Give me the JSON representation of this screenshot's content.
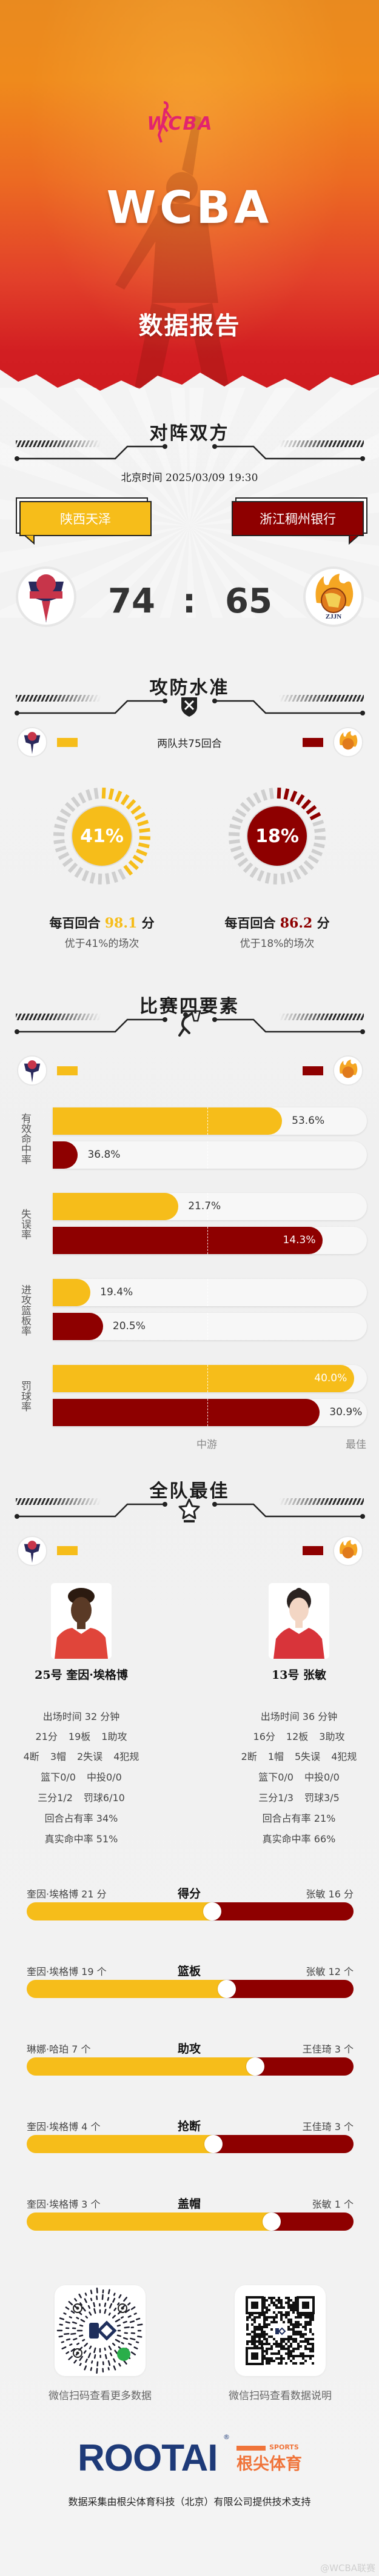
{
  "colors": {
    "home": "#f6bd1a",
    "away": "#8e0000",
    "brand_navy": "#1e3a78",
    "brand_orange": "#f0743a"
  },
  "header": {
    "league_logo": "WCBA",
    "title": "WCBA",
    "subtitle": "数据报告"
  },
  "matchup": {
    "title": "对阵双方",
    "datetime": "北京时间 2025/03/09 19:30",
    "home": {
      "name": "陕西天泽",
      "score": "74",
      "logo_icon": "shaanxi-tianze-logo"
    },
    "away": {
      "name": "浙江稠州银行",
      "score": "65",
      "logo_icon": "zhejiang-logo"
    },
    "separator": ":"
  },
  "efficiency": {
    "title": "攻防水准",
    "icon": "shield-swords-icon",
    "possessions": "两队共75回合",
    "teams": [
      {
        "percentile": 41,
        "pct_label": "41%",
        "prefix": "每百回合",
        "rating": "98.1",
        "unit": "分",
        "note": "优于41%的场次"
      },
      {
        "percentile": 18,
        "pct_label": "18%",
        "prefix": "每百回合",
        "rating": "86.2",
        "unit": "分",
        "note": "优于18%的场次"
      }
    ]
  },
  "four_factors": {
    "title": "比赛四要素",
    "icon": "basketball-dunk-icon",
    "axis": {
      "mid": "中游",
      "best": "最佳"
    },
    "factors": [
      {
        "label": "有效命中率",
        "home": {
          "value": "53.6%",
          "level": 0.73
        },
        "away": {
          "value": "36.8%",
          "level": 0.08
        }
      },
      {
        "label": "失误率",
        "home": {
          "value": "21.7%",
          "level": 0.4
        },
        "away": {
          "value": "14.3%",
          "level": 0.86
        }
      },
      {
        "label": "进攻篮板率",
        "home": {
          "value": "19.4%",
          "level": 0.12
        },
        "away": {
          "value": "20.5%",
          "level": 0.16
        }
      },
      {
        "label": "罚球率",
        "home": {
          "value": "40.0%",
          "level": 0.96
        },
        "away": {
          "value": "30.9%",
          "level": 0.85
        }
      }
    ]
  },
  "best": {
    "title": "全队最佳",
    "icon": "star-icon",
    "players": [
      {
        "name": "25号 奎因·埃格博",
        "lines": [
          [
            "出场时间 32 分钟"
          ],
          [
            "21分",
            "19板",
            "1助攻"
          ],
          [
            "4断",
            "3帽",
            "2失误",
            "4犯规"
          ],
          [
            "篮下0/0",
            "中投0/0"
          ],
          [
            "三分1/2",
            "罚球6/10"
          ],
          [
            "回合占有率 34%"
          ],
          [
            "真实命中率 51%"
          ]
        ]
      },
      {
        "name": "13号 张敏",
        "lines": [
          [
            "出场时间 36 分钟"
          ],
          [
            "16分",
            "12板",
            "3助攻"
          ],
          [
            "2断",
            "1帽",
            "5失误",
            "4犯规"
          ],
          [
            "篮下0/0",
            "中投0/0"
          ],
          [
            "三分1/3",
            "罚球3/5"
          ],
          [
            "回合占有率 21%"
          ],
          [
            "真实命中率 66%"
          ]
        ]
      }
    ],
    "comparisons": [
      {
        "category": "得分",
        "home_label": "奎因·埃格博 21 分",
        "away_label": "张敏 16 分",
        "home_value": 21,
        "away_value": 16
      },
      {
        "category": "篮板",
        "home_label": "奎因·埃格博 19 个",
        "away_label": "张敏 12 个",
        "home_value": 19,
        "away_value": 12
      },
      {
        "category": "助攻",
        "home_label": "琳娜·哈珀 7 个",
        "away_label": "王佳琦 3 个",
        "home_value": 7,
        "away_value": 3
      },
      {
        "category": "抢断",
        "home_label": "奎因·埃格博 4 个",
        "away_label": "王佳琦 3 个",
        "home_value": 4,
        "away_value": 3
      },
      {
        "category": "盖帽",
        "home_label": "奎因·埃格博 3 个",
        "away_label": "张敏 1 个",
        "home_value": 3,
        "away_value": 1
      }
    ]
  },
  "footer": {
    "qr": [
      {
        "caption": "微信扫码查看更多数据",
        "icon": "mini-program-code-icon"
      },
      {
        "caption": "微信扫码查看数据说明",
        "icon": "qr-code-icon"
      }
    ],
    "brand": {
      "en": "ROOTAI",
      "reg": "®",
      "sports": "SPORTS",
      "cn": "根尖体育"
    },
    "credit": "数据采集由根尖体育科技（北京）有限公司提供技术支持",
    "watermark": "@WCBA联赛"
  }
}
